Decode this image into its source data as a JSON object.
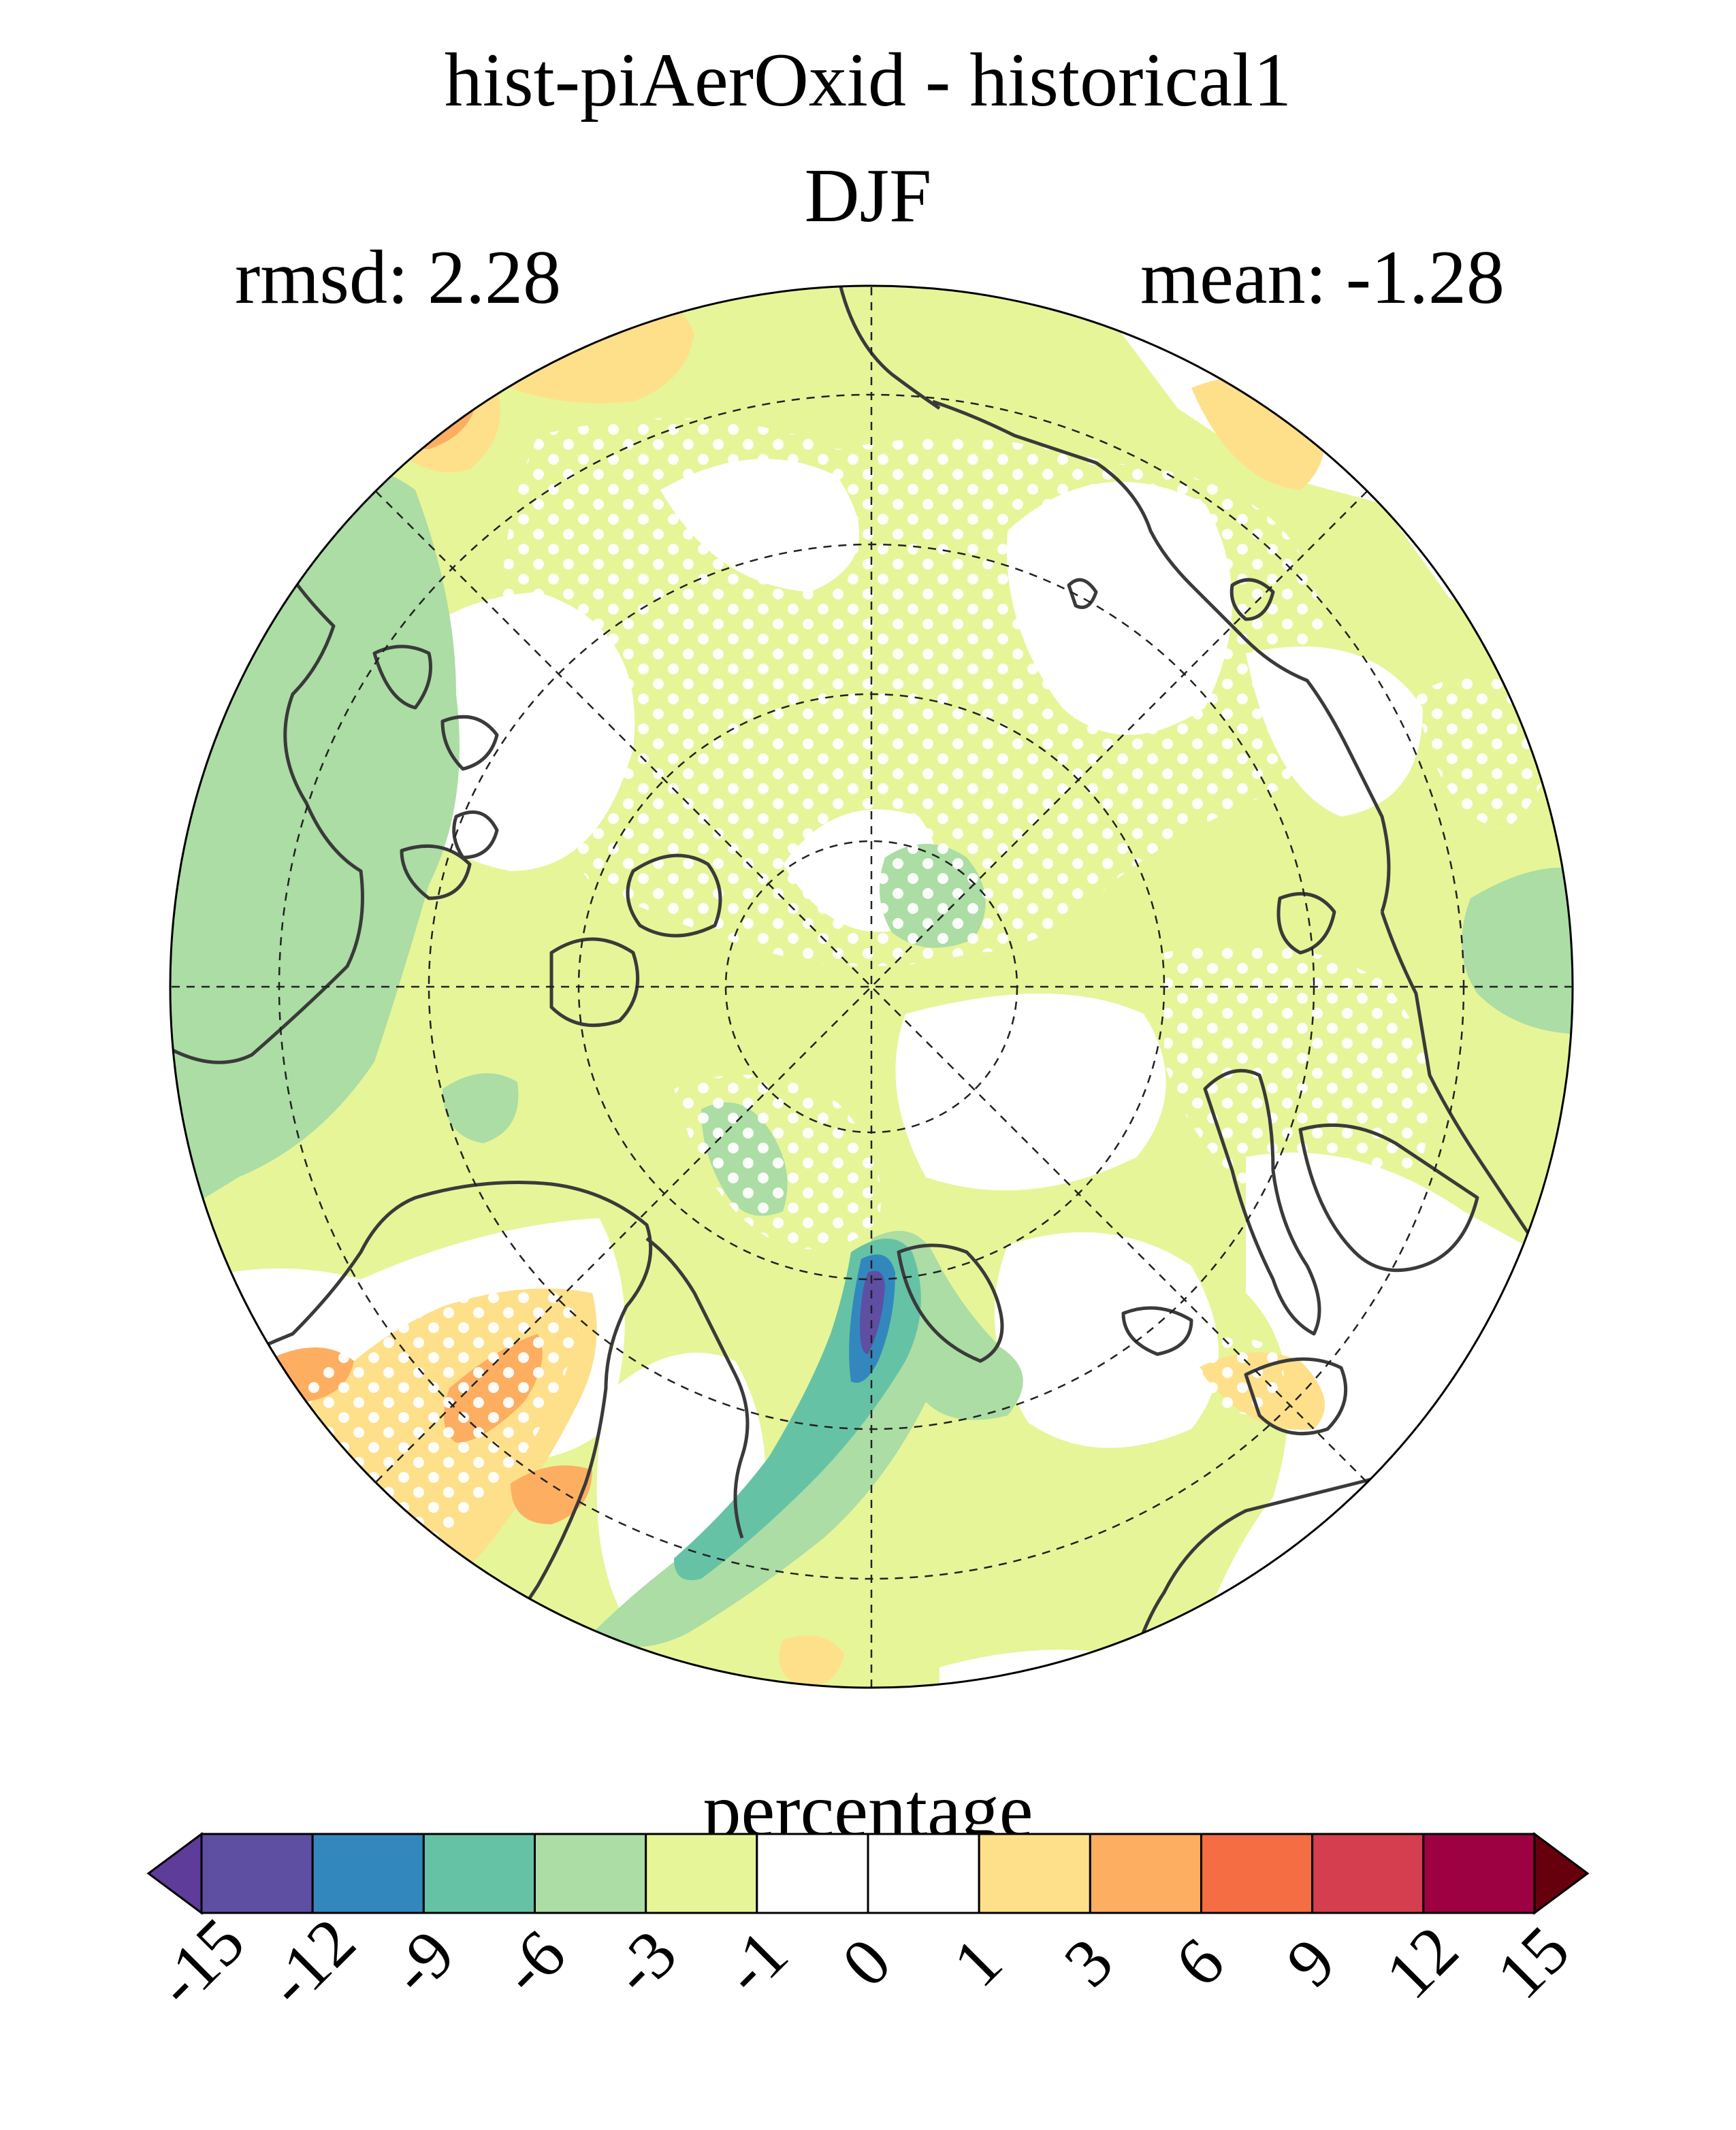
{
  "title": "hist-piAerOxid - historical1",
  "subtitle": "DJF",
  "stats": {
    "rmsd": "rmsd: 2.28",
    "mean": "mean: -1.28"
  },
  "colorbar": {
    "label": "percentage",
    "ticks": [
      "-15",
      "-12",
      "-9",
      "-6",
      "-3",
      "-1",
      "0",
      "1",
      "3",
      "6",
      "9",
      "12",
      "15"
    ],
    "colors": [
      "#5e3c99",
      "#5e4fa2",
      "#3288bd",
      "#66c2a5",
      "#abdda4",
      "#e6f598",
      "#ffffff",
      "#ffffff",
      "#fee08b",
      "#fdae61",
      "#f46d43",
      "#d53e4f",
      "#9e0142",
      "#67000d"
    ]
  },
  "map": {
    "projection": "north-polar-stereographic",
    "colors": {
      "light_green": "#e6f598",
      "green": "#abdda4",
      "teal": "#66c2a5",
      "blue": "#3288bd",
      "purple": "#5e4fa2",
      "yellow": "#fee08b",
      "orange": "#fdae61",
      "coast": "#3a3a3a"
    }
  }
}
